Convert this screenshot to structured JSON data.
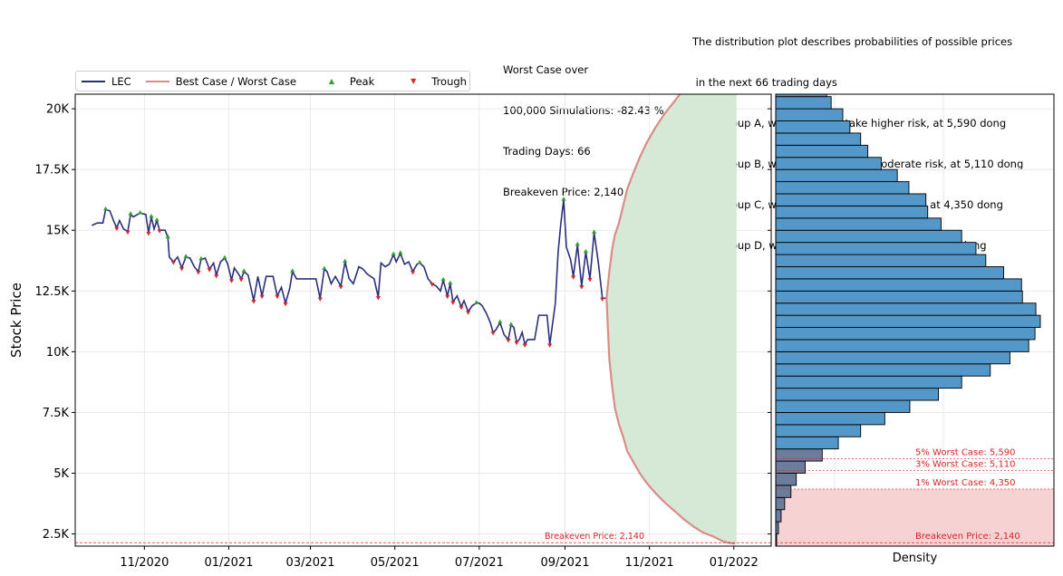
{
  "chart_data": {
    "type": "line",
    "ylabel": "Stock Price",
    "ylim": [
      2000,
      20600
    ],
    "yticks": [
      {
        "value": 2500,
        "label": "2.5K"
      },
      {
        "value": 5000,
        "label": "5K"
      },
      {
        "value": 7500,
        "label": "7.5K"
      },
      {
        "value": 10000,
        "label": "10K"
      },
      {
        "value": 12500,
        "label": "12.5K"
      },
      {
        "value": 15000,
        "label": "15K"
      },
      {
        "value": 17500,
        "label": "17.5K"
      },
      {
        "value": 20000,
        "label": "20K"
      }
    ],
    "xticks": [
      {
        "date": "2020-11-01",
        "label": "11/2020"
      },
      {
        "date": "2021-01-01",
        "label": "01/2021"
      },
      {
        "date": "2021-03-01",
        "label": "03/2021"
      },
      {
        "date": "2021-05-01",
        "label": "05/2021"
      },
      {
        "date": "2021-07-01",
        "label": "07/2021"
      },
      {
        "date": "2021-09-01",
        "label": "09/2021"
      },
      {
        "date": "2021-11-01",
        "label": "11/2021"
      },
      {
        "date": "2022-01-01",
        "label": "01/2022"
      }
    ],
    "xlim": [
      "2020-09-12",
      "2022-01-28"
    ],
    "grid": true,
    "legend_position": "top-left, above plot",
    "legend": [
      "LEC",
      "Best Case / Worst Case",
      "Peak",
      "Trough"
    ],
    "colors": {
      "lec": "#2b2f7a",
      "bestworst": "#db8c86",
      "peak": "#2ca02c",
      "trough": "#d62728",
      "fill": "#d6e9d6",
      "hist": "#5497c9",
      "risk_band": "#f6d2d3"
    },
    "series": [
      {
        "name": "LEC",
        "points": [
          [
            "2020-09-24",
            15200
          ],
          [
            "2020-09-28",
            15300
          ],
          [
            "2020-10-02",
            15300
          ],
          [
            "2020-10-04",
            15850
          ],
          [
            "2020-10-07",
            15800
          ],
          [
            "2020-10-10",
            15350
          ],
          [
            "2020-10-12",
            15100
          ],
          [
            "2020-10-14",
            15400
          ],
          [
            "2020-10-17",
            15050
          ],
          [
            "2020-10-20",
            14950
          ],
          [
            "2020-10-22",
            15650
          ],
          [
            "2020-10-24",
            15550
          ],
          [
            "2020-10-27",
            15650
          ],
          [
            "2020-10-29",
            15700
          ],
          [
            "2020-11-02",
            15650
          ],
          [
            "2020-11-04",
            14900
          ],
          [
            "2020-11-06",
            15550
          ],
          [
            "2020-11-08",
            15050
          ],
          [
            "2020-11-10",
            15400
          ],
          [
            "2020-11-12",
            15000
          ],
          [
            "2020-11-16",
            15000
          ],
          [
            "2020-11-18",
            14700
          ],
          [
            "2020-11-19",
            13900
          ],
          [
            "2020-11-22",
            13700
          ],
          [
            "2020-11-25",
            13900
          ],
          [
            "2020-11-28",
            13450
          ],
          [
            "2020-12-01",
            13900
          ],
          [
            "2020-12-04",
            13850
          ],
          [
            "2020-12-07",
            13500
          ],
          [
            "2020-12-10",
            13300
          ],
          [
            "2020-12-12",
            13800
          ],
          [
            "2020-12-15",
            13850
          ],
          [
            "2020-12-18",
            13400
          ],
          [
            "2020-12-21",
            13650
          ],
          [
            "2020-12-23",
            13150
          ],
          [
            "2020-12-26",
            13700
          ],
          [
            "2020-12-29",
            13850
          ],
          [
            "2020-12-31",
            13650
          ],
          [
            "2021-01-03",
            12950
          ],
          [
            "2021-01-05",
            13450
          ],
          [
            "2021-01-08",
            13200
          ],
          [
            "2021-01-10",
            13000
          ],
          [
            "2021-01-12",
            13300
          ],
          [
            "2021-01-15",
            13150
          ],
          [
            "2021-01-19",
            12100
          ],
          [
            "2021-01-22",
            13100
          ],
          [
            "2021-01-25",
            12300
          ],
          [
            "2021-01-28",
            13100
          ],
          [
            "2021-02-02",
            13100
          ],
          [
            "2021-02-05",
            12300
          ],
          [
            "2021-02-08",
            12650
          ],
          [
            "2021-02-11",
            12000
          ],
          [
            "2021-02-14",
            12600
          ],
          [
            "2021-02-16",
            13300
          ],
          [
            "2021-02-19",
            13000
          ],
          [
            "2021-02-25",
            13000
          ],
          [
            "2021-03-02",
            13000
          ],
          [
            "2021-03-05",
            13000
          ],
          [
            "2021-03-08",
            12200
          ],
          [
            "2021-03-11",
            13400
          ],
          [
            "2021-03-13",
            13300
          ],
          [
            "2021-03-16",
            12800
          ],
          [
            "2021-03-19",
            13100
          ],
          [
            "2021-03-23",
            12700
          ],
          [
            "2021-03-26",
            13700
          ],
          [
            "2021-03-29",
            13000
          ],
          [
            "2021-04-01",
            12800
          ],
          [
            "2021-04-05",
            13500
          ],
          [
            "2021-04-08",
            13400
          ],
          [
            "2021-04-11",
            13200
          ],
          [
            "2021-04-16",
            13000
          ],
          [
            "2021-04-19",
            12250
          ],
          [
            "2021-04-21",
            13650
          ],
          [
            "2021-04-24",
            13500
          ],
          [
            "2021-04-27",
            13600
          ],
          [
            "2021-04-30",
            14000
          ],
          [
            "2021-05-02",
            13700
          ],
          [
            "2021-05-05",
            14050
          ],
          [
            "2021-05-08",
            13600
          ],
          [
            "2021-05-11",
            13700
          ],
          [
            "2021-05-14",
            13300
          ],
          [
            "2021-05-17",
            13600
          ],
          [
            "2021-05-19",
            13650
          ],
          [
            "2021-05-22",
            13500
          ],
          [
            "2021-05-25",
            13000
          ],
          [
            "2021-05-28",
            12800
          ],
          [
            "2021-05-31",
            12700
          ],
          [
            "2021-06-03",
            12500
          ],
          [
            "2021-06-05",
            12950
          ],
          [
            "2021-06-08",
            12300
          ],
          [
            "2021-06-10",
            12800
          ],
          [
            "2021-06-12",
            12050
          ],
          [
            "2021-06-15",
            12300
          ],
          [
            "2021-06-18",
            11850
          ],
          [
            "2021-06-20",
            12100
          ],
          [
            "2021-06-23",
            11650
          ],
          [
            "2021-06-26",
            11900
          ],
          [
            "2021-06-29",
            12000
          ],
          [
            "2021-07-01",
            12000
          ],
          [
            "2021-07-03",
            11900
          ],
          [
            "2021-07-06",
            11600
          ],
          [
            "2021-07-09",
            11200
          ],
          [
            "2021-07-11",
            10800
          ],
          [
            "2021-07-13",
            10900
          ],
          [
            "2021-07-16",
            11200
          ],
          [
            "2021-07-19",
            10700
          ],
          [
            "2021-07-22",
            10500
          ],
          [
            "2021-07-24",
            11100
          ],
          [
            "2021-07-26",
            11000
          ],
          [
            "2021-07-28",
            10400
          ],
          [
            "2021-07-30",
            10500
          ],
          [
            "2021-08-01",
            10800
          ],
          [
            "2021-08-03",
            10300
          ],
          [
            "2021-08-05",
            10500
          ],
          [
            "2021-08-10",
            10500
          ],
          [
            "2021-08-13",
            11500
          ],
          [
            "2021-08-19",
            11500
          ],
          [
            "2021-08-21",
            10300
          ],
          [
            "2021-08-25",
            12000
          ],
          [
            "2021-08-27",
            14100
          ],
          [
            "2021-08-29",
            15300
          ],
          [
            "2021-08-31",
            16250
          ],
          [
            "2021-09-02",
            14300
          ],
          [
            "2021-09-05",
            13800
          ],
          [
            "2021-09-07",
            13100
          ],
          [
            "2021-09-10",
            14400
          ],
          [
            "2021-09-13",
            12700
          ],
          [
            "2021-09-16",
            14100
          ],
          [
            "2021-09-19",
            13000
          ],
          [
            "2021-09-22",
            14900
          ],
          [
            "2021-09-25",
            13700
          ],
          [
            "2021-09-28",
            12200
          ],
          [
            "2021-10-01",
            12200
          ]
        ]
      },
      {
        "name": "Best Case / Worst Case",
        "points": [
          [
            "2021-10-01",
            12200
          ],
          [
            "2021-10-03",
            13300
          ],
          [
            "2021-10-05",
            14200
          ],
          [
            "2021-10-07",
            14800
          ],
          [
            "2021-10-10",
            15300
          ],
          [
            "2021-10-13",
            16000
          ],
          [
            "2021-10-16",
            16700
          ],
          [
            "2021-10-20",
            17300
          ],
          [
            "2021-10-25",
            18000
          ],
          [
            "2021-10-30",
            18600
          ],
          [
            "2021-11-05",
            19200
          ],
          [
            "2021-11-12",
            19800
          ],
          [
            "2021-11-19",
            20300
          ],
          [
            "2021-11-23",
            20600
          ]
        ],
        "worst_points": [
          [
            "2021-10-01",
            12200
          ],
          [
            "2021-10-03",
            9700
          ],
          [
            "2021-10-05",
            8600
          ],
          [
            "2021-10-07",
            7700
          ],
          [
            "2021-10-10",
            7000
          ],
          [
            "2021-10-13",
            6500
          ],
          [
            "2021-10-16",
            5900
          ],
          [
            "2021-10-20",
            5500
          ],
          [
            "2021-10-25",
            5000
          ],
          [
            "2021-10-30",
            4600
          ],
          [
            "2021-11-05",
            4200
          ],
          [
            "2021-11-12",
            3800
          ],
          [
            "2021-11-19",
            3450
          ],
          [
            "2021-11-26",
            3100
          ],
          [
            "2021-12-03",
            2800
          ],
          [
            "2021-12-10",
            2550
          ],
          [
            "2021-12-17",
            2400
          ],
          [
            "2021-12-24",
            2200
          ],
          [
            "2021-12-28",
            2140
          ],
          [
            "2022-01-02",
            2100
          ]
        ],
        "fill_end": "2022-01-03"
      }
    ],
    "peaks": [
      [
        "2020-10-04",
        15850
      ],
      [
        "2020-10-22",
        15650
      ],
      [
        "2020-10-29",
        15700
      ],
      [
        "2020-11-06",
        15550
      ],
      [
        "2020-11-10",
        15400
      ],
      [
        "2020-11-18",
        14700
      ],
      [
        "2020-12-01",
        13900
      ],
      [
        "2020-12-12",
        13800
      ],
      [
        "2020-12-29",
        13850
      ],
      [
        "2021-01-12",
        13300
      ],
      [
        "2021-02-16",
        13300
      ],
      [
        "2021-03-11",
        13400
      ],
      [
        "2021-03-26",
        13700
      ],
      [
        "2021-04-30",
        14000
      ],
      [
        "2021-05-05",
        14050
      ],
      [
        "2021-05-19",
        13650
      ],
      [
        "2021-06-05",
        12950
      ],
      [
        "2021-06-10",
        12800
      ],
      [
        "2021-06-29",
        12000
      ],
      [
        "2021-07-16",
        11200
      ],
      [
        "2021-07-24",
        11100
      ],
      [
        "2021-08-31",
        16250
      ],
      [
        "2021-09-10",
        14400
      ],
      [
        "2021-09-16",
        14100
      ],
      [
        "2021-09-22",
        14900
      ]
    ],
    "troughs": [
      [
        "2020-10-12",
        15100
      ],
      [
        "2020-10-20",
        14950
      ],
      [
        "2020-11-04",
        14900
      ],
      [
        "2020-11-12",
        15000
      ],
      [
        "2020-11-22",
        13700
      ],
      [
        "2020-11-28",
        13450
      ],
      [
        "2020-12-10",
        13300
      ],
      [
        "2020-12-18",
        13400
      ],
      [
        "2020-12-23",
        13150
      ],
      [
        "2021-01-03",
        12950
      ],
      [
        "2021-01-10",
        13000
      ],
      [
        "2021-01-19",
        12100
      ],
      [
        "2021-01-25",
        12300
      ],
      [
        "2021-02-05",
        12300
      ],
      [
        "2021-02-11",
        12000
      ],
      [
        "2021-03-08",
        12200
      ],
      [
        "2021-03-23",
        12700
      ],
      [
        "2021-04-19",
        12250
      ],
      [
        "2021-05-14",
        13300
      ],
      [
        "2021-05-28",
        12800
      ],
      [
        "2021-06-08",
        12300
      ],
      [
        "2021-06-12",
        12050
      ],
      [
        "2021-06-18",
        11850
      ],
      [
        "2021-06-23",
        11650
      ],
      [
        "2021-07-11",
        10800
      ],
      [
        "2021-07-22",
        10500
      ],
      [
        "2021-07-28",
        10400
      ],
      [
        "2021-08-03",
        10300
      ],
      [
        "2021-08-21",
        10300
      ],
      [
        "2021-09-07",
        13100
      ],
      [
        "2021-09-13",
        12700
      ],
      [
        "2021-09-19",
        13000
      ],
      [
        "2021-09-28",
        12200
      ]
    ],
    "breakeven": {
      "value": 2140,
      "label": "Breakeven Price: 2,140"
    },
    "distribution": {
      "xlabel": "Density",
      "bin_start": 2000,
      "bin_width": 500,
      "counts": [
        1,
        3,
        6,
        10,
        17,
        23,
        33,
        52,
        70,
        95,
        122,
        150,
        182,
        208,
        240,
        262,
        283,
        290,
        296,
        291,
        276,
        275,
        255,
        235,
        224,
        208,
        185,
        170,
        168,
        149,
        136,
        118,
        103,
        95,
        83,
        75,
        62,
        57,
        53,
        46
      ]
    },
    "risk_lines": [
      {
        "value": 5590,
        "label": "5% Worst Case: 5,590"
      },
      {
        "value": 5110,
        "label": "3% Worst Case: 5,110"
      },
      {
        "value": 4350,
        "label": "1% Worst Case: 4,350"
      }
    ]
  },
  "legend": {
    "lec": "LEC",
    "bestworst": "Best Case / Worst Case",
    "peak": "Peak",
    "trough": "Trough"
  },
  "summary": {
    "line1": "Worst Case over",
    "line2": "100,000 Simulations: -82.43 %",
    "line3": "Trading Days: 66",
    "line4": "Breakeven Price: 2,140"
  },
  "description": {
    "line1": "The distribution plot describes probabilities of possible prices",
    "line2": " in the next 66 trading days",
    "line3": "- For Group A, we propose to take higher risk, at 5,590 dong",
    "line4": "- For Group B, we propose to take moderate risk, at 5,110 dong",
    "line5": "- For Group C, we propose to take minor risk, at 4,350 dong",
    "line6": "- For Group D, we propose to take no risk, at 2,140 dong"
  }
}
